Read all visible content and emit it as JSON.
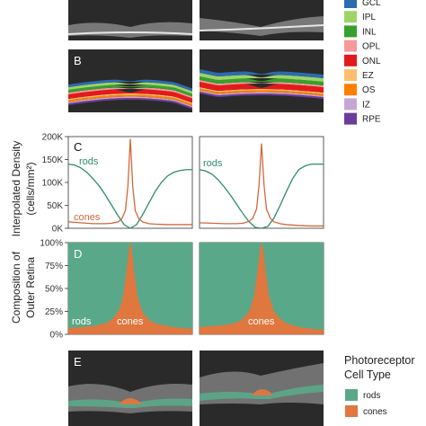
{
  "panels": {
    "a_letter": "",
    "b_letter": "B",
    "c_letter": "C",
    "d_letter": "D",
    "e_letter": "E"
  },
  "layer_legend": {
    "items": [
      {
        "label": "GCL",
        "color": "#2b6cb0"
      },
      {
        "label": "IPL",
        "color": "#9ed36a"
      },
      {
        "label": "INL",
        "color": "#35a02c"
      },
      {
        "label": "OPL",
        "color": "#f59a9a"
      },
      {
        "label": "ONL",
        "color": "#e31a1c"
      },
      {
        "label": "EZ",
        "color": "#fdbf6f"
      },
      {
        "label": "OS",
        "color": "#ff7f00"
      },
      {
        "label": "IZ",
        "color": "#c7a6d6"
      },
      {
        "label": "RPE",
        "color": "#6a3d9a"
      }
    ]
  },
  "colors": {
    "rods": "#2e8b6f",
    "cones": "#d2683a",
    "rods_fill": "#5aa88a",
    "cones_fill": "#e0773f",
    "oct_background": "#2a2a2a"
  },
  "chart_data": [
    {
      "type": "line",
      "panel": "C",
      "ylabel": "Interpolated Density",
      "ylabel_unit": "(cells/mm²)",
      "ylim": [
        0,
        200000
      ],
      "yticks": [
        0,
        50000,
        100000,
        150000,
        200000
      ],
      "ytick_labels": [
        "0K",
        "50K",
        "100K",
        "150K",
        "200K"
      ],
      "xlim": [
        0,
        1
      ],
      "subplots": [
        {
          "name": "left",
          "series": [
            {
              "name": "rods",
              "x": [
                0,
                0.05,
                0.1,
                0.15,
                0.2,
                0.25,
                0.3,
                0.35,
                0.4,
                0.45,
                0.5,
                0.55,
                0.6,
                0.65,
                0.7,
                0.75,
                0.8,
                0.85,
                0.9,
                0.95,
                1.0
              ],
              "y": [
                140000,
                138000,
                132000,
                122000,
                108000,
                92000,
                72000,
                50000,
                28000,
                8000,
                0,
                8000,
                30000,
                55000,
                80000,
                100000,
                114000,
                122000,
                126000,
                128000,
                128000
              ]
            },
            {
              "name": "cones",
              "x": [
                0,
                0.1,
                0.2,
                0.3,
                0.35,
                0.4,
                0.43,
                0.46,
                0.48,
                0.5,
                0.52,
                0.54,
                0.57,
                0.6,
                0.65,
                0.7,
                0.8,
                0.9,
                1.0
              ],
              "y": [
                14000,
                12000,
                10000,
                10000,
                11000,
                14000,
                20000,
                38000,
                90000,
                195000,
                90000,
                38000,
                20000,
                14000,
                10000,
                9000,
                8000,
                8000,
                8000
              ]
            }
          ],
          "labels": [
            {
              "text": "rods",
              "series": "rods"
            },
            {
              "text": "cones",
              "series": "cones"
            }
          ]
        },
        {
          "name": "right",
          "series": [
            {
              "name": "rods",
              "x": [
                0,
                0.05,
                0.1,
                0.15,
                0.2,
                0.25,
                0.3,
                0.35,
                0.4,
                0.45,
                0.5,
                0.55,
                0.6,
                0.65,
                0.7,
                0.75,
                0.8,
                0.85,
                0.9,
                0.95,
                1.0
              ],
              "y": [
                128000,
                125000,
                118000,
                106000,
                90000,
                72000,
                52000,
                32000,
                14000,
                2000,
                0,
                4000,
                22000,
                50000,
                80000,
                108000,
                128000,
                136000,
                140000,
                140000,
                140000
              ]
            },
            {
              "name": "cones",
              "x": [
                0,
                0.1,
                0.2,
                0.3,
                0.35,
                0.4,
                0.43,
                0.46,
                0.48,
                0.5,
                0.52,
                0.54,
                0.57,
                0.6,
                0.65,
                0.7,
                0.8,
                0.9,
                1.0
              ],
              "y": [
                12000,
                11000,
                10000,
                10000,
                11000,
                15000,
                22000,
                42000,
                95000,
                185000,
                95000,
                42000,
                22000,
                14000,
                10000,
                8000,
                6000,
                5000,
                5000
              ]
            }
          ],
          "labels": [
            {
              "text": "rods",
              "series": "rods"
            }
          ]
        }
      ]
    },
    {
      "type": "area",
      "panel": "D",
      "ylabel": "Composition of",
      "ylabel_line2": "Outer Retina",
      "ylim": [
        0,
        100
      ],
      "yticks": [
        0,
        25,
        50,
        75,
        100
      ],
      "ytick_labels": [
        "0%",
        "25%",
        "50%",
        "75%",
        "100%"
      ],
      "xlim": [
        0,
        1
      ],
      "subplots": [
        {
          "name": "left",
          "cones_pct_x": [
            0,
            0.1,
            0.2,
            0.3,
            0.35,
            0.4,
            0.44,
            0.47,
            0.49,
            0.5,
            0.51,
            0.53,
            0.56,
            0.6,
            0.65,
            0.7,
            0.8,
            0.9,
            1.0
          ],
          "cones_pct_y": [
            7,
            8,
            9,
            12,
            16,
            24,
            40,
            70,
            95,
            100,
            95,
            70,
            40,
            24,
            16,
            12,
            9,
            7,
            6
          ],
          "labels": [
            {
              "text": "rods",
              "series": "rods"
            },
            {
              "text": "cones",
              "series": "cones"
            }
          ]
        },
        {
          "name": "right",
          "cones_pct_x": [
            0,
            0.1,
            0.2,
            0.3,
            0.35,
            0.4,
            0.44,
            0.47,
            0.49,
            0.5,
            0.51,
            0.53,
            0.56,
            0.6,
            0.65,
            0.7,
            0.8,
            0.9,
            1.0
          ],
          "cones_pct_y": [
            8,
            9,
            10,
            13,
            17,
            25,
            42,
            72,
            96,
            100,
            96,
            72,
            42,
            25,
            17,
            12,
            8,
            6,
            5
          ],
          "labels": [
            {
              "text": "cones",
              "series": "cones"
            }
          ]
        }
      ]
    }
  ],
  "celltype_legend": {
    "title_line1": "Photoreceptor",
    "title_line2": "Cell Type",
    "items": [
      {
        "label": "rods",
        "color": "#5aa88a"
      },
      {
        "label": "cones",
        "color": "#e0773f"
      }
    ]
  }
}
